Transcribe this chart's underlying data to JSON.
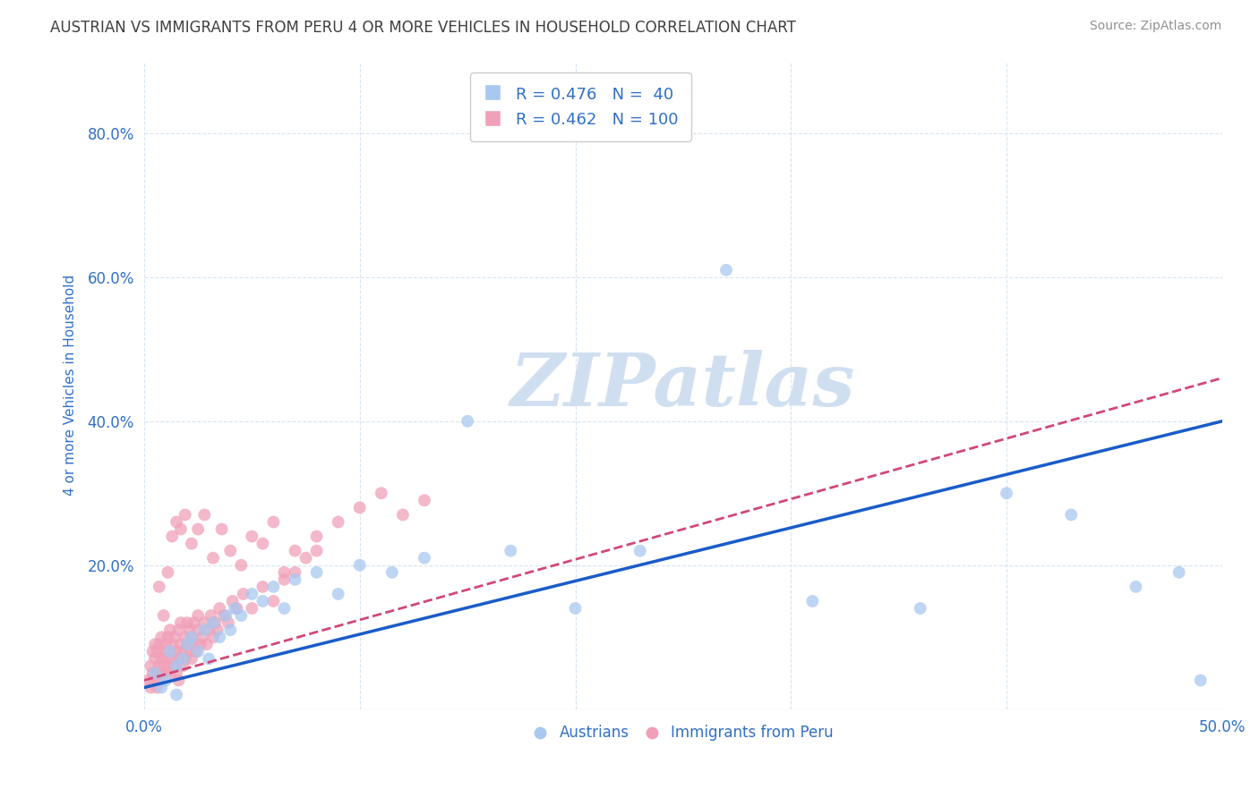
{
  "title": "AUSTRIAN VS IMMIGRANTS FROM PERU 4 OR MORE VEHICLES IN HOUSEHOLD CORRELATION CHART",
  "source": "Source: ZipAtlas.com",
  "ylabel": "4 or more Vehicles in Household",
  "x_min": 0.0,
  "x_max": 0.5,
  "y_min": 0.0,
  "y_max": 0.9,
  "x_ticks": [
    0.0,
    0.1,
    0.2,
    0.3,
    0.4,
    0.5
  ],
  "x_tick_labels": [
    "0.0%",
    "",
    "",
    "",
    "",
    "50.0%"
  ],
  "y_ticks": [
    0.0,
    0.2,
    0.4,
    0.6,
    0.8
  ],
  "y_tick_labels": [
    "",
    "20.0%",
    "40.0%",
    "60.0%",
    "80.0%"
  ],
  "austrians_R": 0.476,
  "austrians_N": 40,
  "peru_R": 0.462,
  "peru_N": 100,
  "blue_color": "#a8c8f0",
  "pink_color": "#f0a0b8",
  "blue_line_color": "#1a5cc8",
  "pink_line_color": "#d04878",
  "legend_text_color": "#3070c8",
  "title_color": "#404040",
  "source_color": "#909090",
  "axis_label_color": "#3070c8",
  "tick_color": "#3070c8",
  "grid_color": "#d8e4f0",
  "watermark_color": "#d0dff0",
  "watermark_text": "ZIPatlas",
  "austrians_x": [
    0.005,
    0.008,
    0.01,
    0.012,
    0.015,
    0.015,
    0.018,
    0.02,
    0.022,
    0.025,
    0.028,
    0.03,
    0.032,
    0.035,
    0.038,
    0.04,
    0.042,
    0.045,
    0.05,
    0.055,
    0.06,
    0.065,
    0.07,
    0.08,
    0.09,
    0.1,
    0.115,
    0.13,
    0.15,
    0.17,
    0.2,
    0.23,
    0.27,
    0.31,
    0.36,
    0.4,
    0.43,
    0.46,
    0.48,
    0.49
  ],
  "austrians_y": [
    0.05,
    0.03,
    0.04,
    0.08,
    0.06,
    0.02,
    0.07,
    0.09,
    0.1,
    0.08,
    0.11,
    0.07,
    0.12,
    0.1,
    0.13,
    0.11,
    0.14,
    0.13,
    0.16,
    0.15,
    0.17,
    0.14,
    0.18,
    0.19,
    0.16,
    0.2,
    0.19,
    0.21,
    0.4,
    0.22,
    0.14,
    0.22,
    0.61,
    0.15,
    0.14,
    0.3,
    0.27,
    0.17,
    0.19,
    0.04
  ],
  "peru_x": [
    0.002,
    0.003,
    0.003,
    0.004,
    0.004,
    0.005,
    0.005,
    0.005,
    0.006,
    0.006,
    0.006,
    0.007,
    0.007,
    0.007,
    0.008,
    0.008,
    0.008,
    0.009,
    0.009,
    0.01,
    0.01,
    0.01,
    0.011,
    0.011,
    0.012,
    0.012,
    0.012,
    0.013,
    0.013,
    0.014,
    0.014,
    0.015,
    0.015,
    0.016,
    0.016,
    0.016,
    0.017,
    0.017,
    0.018,
    0.018,
    0.019,
    0.019,
    0.02,
    0.02,
    0.021,
    0.021,
    0.022,
    0.022,
    0.023,
    0.023,
    0.024,
    0.025,
    0.025,
    0.026,
    0.027,
    0.028,
    0.029,
    0.03,
    0.031,
    0.032,
    0.033,
    0.034,
    0.035,
    0.037,
    0.039,
    0.041,
    0.043,
    0.046,
    0.05,
    0.055,
    0.06,
    0.065,
    0.07,
    0.075,
    0.08,
    0.09,
    0.1,
    0.11,
    0.12,
    0.13,
    0.007,
    0.009,
    0.011,
    0.013,
    0.015,
    0.017,
    0.019,
    0.022,
    0.025,
    0.028,
    0.032,
    0.036,
    0.04,
    0.045,
    0.05,
    0.055,
    0.06,
    0.065,
    0.07,
    0.08
  ],
  "peru_y": [
    0.04,
    0.03,
    0.06,
    0.05,
    0.08,
    0.04,
    0.07,
    0.09,
    0.05,
    0.08,
    0.03,
    0.06,
    0.09,
    0.04,
    0.07,
    0.05,
    0.1,
    0.06,
    0.08,
    0.05,
    0.09,
    0.07,
    0.06,
    0.1,
    0.05,
    0.08,
    0.11,
    0.07,
    0.09,
    0.06,
    0.1,
    0.05,
    0.08,
    0.07,
    0.11,
    0.04,
    0.09,
    0.12,
    0.08,
    0.06,
    0.1,
    0.07,
    0.09,
    0.12,
    0.08,
    0.11,
    0.07,
    0.1,
    0.09,
    0.12,
    0.08,
    0.11,
    0.13,
    0.09,
    0.1,
    0.12,
    0.09,
    0.11,
    0.13,
    0.1,
    0.12,
    0.11,
    0.14,
    0.13,
    0.12,
    0.15,
    0.14,
    0.16,
    0.14,
    0.17,
    0.15,
    0.18,
    0.19,
    0.21,
    0.22,
    0.26,
    0.28,
    0.3,
    0.27,
    0.29,
    0.17,
    0.13,
    0.19,
    0.24,
    0.26,
    0.25,
    0.27,
    0.23,
    0.25,
    0.27,
    0.21,
    0.25,
    0.22,
    0.2,
    0.24,
    0.23,
    0.26,
    0.19,
    0.22,
    0.24
  ],
  "blue_line_x0": 0.0,
  "blue_line_y0": 0.03,
  "blue_line_x1": 0.5,
  "blue_line_y1": 0.4,
  "pink_line_x0": 0.0,
  "pink_line_y0": 0.04,
  "pink_line_x1": 0.5,
  "pink_line_y1": 0.46
}
